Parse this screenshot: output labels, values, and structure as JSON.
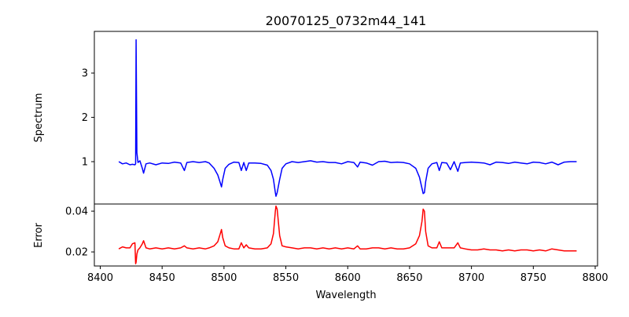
{
  "chart_data": [
    {
      "type": "line",
      "title": "20070125_0732m44_141",
      "xlabel": "",
      "ylabel": "Spectrum",
      "xlim": [
        8400,
        8800
      ],
      "ylim": [
        0.044,
        3.94
      ],
      "yticks": [
        1,
        2,
        3
      ],
      "color": "#0000ff",
      "series": [
        {
          "name": "Spectrum",
          "key": "flux"
        }
      ]
    },
    {
      "type": "line",
      "xlabel": "Wavelength",
      "ylabel": "Error",
      "xlim": [
        8400,
        8800
      ],
      "ylim": [
        0.0131,
        0.0435
      ],
      "xticks": [
        8400,
        8450,
        8500,
        8550,
        8600,
        8650,
        8700,
        8750,
        8800
      ],
      "yticks": [
        0.02,
        0.04
      ],
      "color": "#ff0000",
      "series": [
        {
          "name": "Error",
          "key": "err"
        }
      ]
    }
  ],
  "points": [
    [
      8415,
      1.0,
      0.0215
    ],
    [
      8418,
      0.95,
      0.0225
    ],
    [
      8421,
      0.97,
      0.022
    ],
    [
      8424,
      0.93,
      0.022
    ],
    [
      8426,
      0.94,
      0.024
    ],
    [
      8428,
      0.93,
      0.0245
    ],
    [
      8428.6,
      0.95,
      0.0142
    ],
    [
      8429,
      3.75,
      0.015
    ],
    [
      8429.6,
      1.2,
      0.019
    ],
    [
      8430.5,
      0.98,
      0.021
    ],
    [
      8432,
      1.02,
      0.022
    ],
    [
      8434,
      0.85,
      0.024
    ],
    [
      8435,
      0.74,
      0.0255
    ],
    [
      8437,
      0.95,
      0.022
    ],
    [
      8440,
      0.97,
      0.0215
    ],
    [
      8445,
      0.93,
      0.022
    ],
    [
      8450,
      0.97,
      0.0215
    ],
    [
      8455,
      0.96,
      0.022
    ],
    [
      8460,
      0.99,
      0.0215
    ],
    [
      8465,
      0.97,
      0.022
    ],
    [
      8468,
      0.8,
      0.023
    ],
    [
      8470,
      0.98,
      0.022
    ],
    [
      8475,
      1.0,
      0.0215
    ],
    [
      8480,
      0.98,
      0.022
    ],
    [
      8485,
      1.0,
      0.0215
    ],
    [
      8488,
      0.97,
      0.022
    ],
    [
      8492,
      0.85,
      0.023
    ],
    [
      8495,
      0.7,
      0.025
    ],
    [
      8497,
      0.52,
      0.029
    ],
    [
      8498,
      0.43,
      0.031
    ],
    [
      8499,
      0.6,
      0.027
    ],
    [
      8501,
      0.85,
      0.023
    ],
    [
      8504,
      0.94,
      0.022
    ],
    [
      8508,
      0.99,
      0.0215
    ],
    [
      8512,
      0.98,
      0.0215
    ],
    [
      8514,
      0.8,
      0.0245
    ],
    [
      8516,
      0.98,
      0.022
    ],
    [
      8518,
      0.8,
      0.0235
    ],
    [
      8520,
      0.97,
      0.022
    ],
    [
      8525,
      0.97,
      0.0215
    ],
    [
      8530,
      0.96,
      0.0215
    ],
    [
      8535,
      0.92,
      0.022
    ],
    [
      8538,
      0.8,
      0.024
    ],
    [
      8540,
      0.6,
      0.029
    ],
    [
      8541.5,
      0.3,
      0.04
    ],
    [
      8542,
      0.22,
      0.0425
    ],
    [
      8543,
      0.3,
      0.041
    ],
    [
      8545,
      0.6,
      0.028
    ],
    [
      8547,
      0.85,
      0.023
    ],
    [
      8550,
      0.95,
      0.0225
    ],
    [
      8555,
      1.0,
      0.022
    ],
    [
      8560,
      0.98,
      0.0215
    ],
    [
      8565,
      1.0,
      0.022
    ],
    [
      8570,
      1.02,
      0.022
    ],
    [
      8575,
      0.99,
      0.0215
    ],
    [
      8580,
      1.0,
      0.022
    ],
    [
      8585,
      0.98,
      0.0215
    ],
    [
      8590,
      0.98,
      0.022
    ],
    [
      8595,
      0.95,
      0.0215
    ],
    [
      8600,
      1.0,
      0.022
    ],
    [
      8605,
      0.98,
      0.0215
    ],
    [
      8608,
      0.88,
      0.023
    ],
    [
      8610,
      0.99,
      0.0215
    ],
    [
      8615,
      0.97,
      0.0215
    ],
    [
      8620,
      0.92,
      0.022
    ],
    [
      8625,
      1.0,
      0.022
    ],
    [
      8630,
      1.01,
      0.0215
    ],
    [
      8635,
      0.98,
      0.022
    ],
    [
      8640,
      0.99,
      0.0215
    ],
    [
      8645,
      0.98,
      0.0215
    ],
    [
      8650,
      0.95,
      0.022
    ],
    [
      8655,
      0.85,
      0.024
    ],
    [
      8658,
      0.65,
      0.028
    ],
    [
      8660,
      0.4,
      0.035
    ],
    [
      8661,
      0.28,
      0.041
    ],
    [
      8662,
      0.3,
      0.04
    ],
    [
      8663,
      0.55,
      0.03
    ],
    [
      8665,
      0.85,
      0.023
    ],
    [
      8668,
      0.95,
      0.022
    ],
    [
      8672,
      0.98,
      0.022
    ],
    [
      8674,
      0.8,
      0.025
    ],
    [
      8676,
      0.98,
      0.022
    ],
    [
      8680,
      0.97,
      0.022
    ],
    [
      8683,
      0.82,
      0.022
    ],
    [
      8686,
      1.0,
      0.022
    ],
    [
      8689,
      0.78,
      0.0245
    ],
    [
      8691,
      0.97,
      0.022
    ],
    [
      8695,
      0.98,
      0.0215
    ],
    [
      8700,
      0.99,
      0.021
    ],
    [
      8705,
      0.98,
      0.021
    ],
    [
      8710,
      0.97,
      0.0215
    ],
    [
      8715,
      0.93,
      0.021
    ],
    [
      8720,
      0.99,
      0.021
    ],
    [
      8725,
      0.98,
      0.0205
    ],
    [
      8730,
      0.96,
      0.021
    ],
    [
      8735,
      0.99,
      0.0205
    ],
    [
      8740,
      0.97,
      0.021
    ],
    [
      8745,
      0.95,
      0.021
    ],
    [
      8750,
      0.99,
      0.0205
    ],
    [
      8755,
      0.98,
      0.021
    ],
    [
      8760,
      0.95,
      0.0205
    ],
    [
      8765,
      0.99,
      0.0215
    ],
    [
      8770,
      0.93,
      0.021
    ],
    [
      8775,
      0.99,
      0.0205
    ],
    [
      8780,
      1.0,
      0.0205
    ],
    [
      8785,
      1.0,
      0.0205
    ]
  ]
}
